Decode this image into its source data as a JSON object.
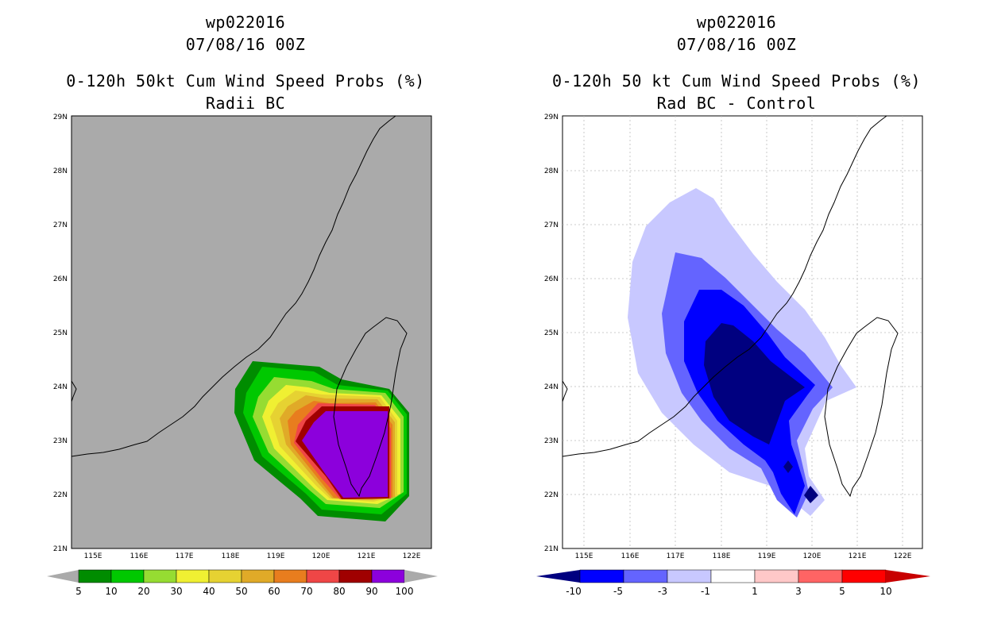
{
  "colors": {
    "map_bg_left": "#aaaaaa",
    "map_bg_right": "#ffffff",
    "coast": "#000000",
    "grid": "#bbbbbb"
  },
  "panels": [
    {
      "id": "left",
      "title_line1": "wp022016",
      "title_line2": "07/08/16 00Z",
      "title_line3": "0-120h 50kt Cum Wind Speed Probs (%)",
      "title_line4": "Radii BC",
      "colorbar": {
        "labels": [
          "5",
          "10",
          "20",
          "30",
          "40",
          "50",
          "60",
          "70",
          "80",
          "90",
          "100"
        ],
        "colors": [
          "#008c00",
          "#00c800",
          "#96dc32",
          "#f0f032",
          "#e6d232",
          "#e0aa28",
          "#e87d1e",
          "#ef4646",
          "#a00000",
          "#8c00dc"
        ]
      }
    },
    {
      "id": "right",
      "title_line1": "wp022016",
      "title_line2": "07/08/16 00Z",
      "title_line3": "0-120h 50 kt Cum Wind Speed Probs (%)",
      "title_line4": "Rad BC - Control",
      "colorbar": {
        "labels": [
          "-10",
          "-5",
          "-3",
          "-1",
          "1",
          "3",
          "5",
          "10"
        ],
        "colors": [
          "#000080",
          "#0000ff",
          "#6464ff",
          "#c8c8ff",
          "#ffffff",
          "#ffc8c8",
          "#ff6464",
          "#ff0000",
          "#c80000"
        ]
      }
    }
  ],
  "axes": {
    "lon_labels": [
      "115E",
      "116E",
      "117E",
      "118E",
      "119E",
      "120E",
      "121E",
      "122E"
    ],
    "lat_labels": [
      "21N",
      "22N",
      "23N",
      "24N",
      "25N",
      "26N",
      "27N",
      "28N",
      "29N"
    ]
  }
}
